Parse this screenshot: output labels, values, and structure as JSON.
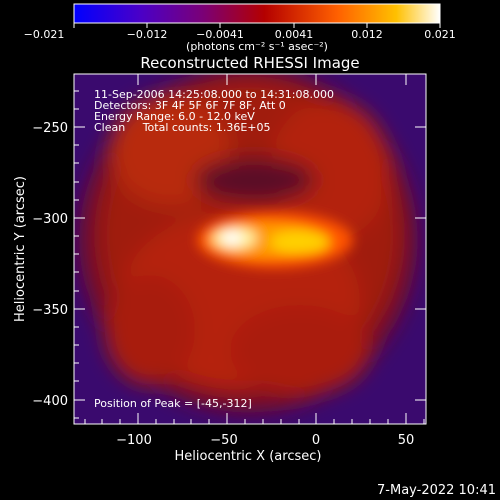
{
  "chart_data": {
    "type": "heatmap",
    "title": "Reconstructed RHESSI Image",
    "xlabel": "Heliocentric X (arcsec)",
    "ylabel": "Heliocentric Y (arcsec)",
    "xlim": [
      -135,
      62
    ],
    "ylim": [
      -413,
      -226
    ],
    "x_ticks": [
      -100,
      -50,
      0,
      50
    ],
    "x_tick_labels": [
      "−100",
      "−50",
      "0",
      "50"
    ],
    "y_ticks": [
      -250,
      -300,
      -350,
      -400
    ],
    "y_tick_labels": [
      "−250",
      "−300",
      "−350",
      "−400"
    ],
    "colorbar": {
      "min": -0.021,
      "max": 0.021,
      "tick_labels": [
        "−0.021",
        "−0.012",
        "−0.0041",
        "0.0041",
        "0.012",
        "0.021"
      ],
      "units_label": "(photons cm⁻² s⁻¹ asec⁻²)",
      "colors": [
        "#0000ff",
        "#4a00c8",
        "#7a0078",
        "#b40000",
        "#ff6000",
        "#ffc000",
        "#ffffff"
      ]
    },
    "annotations": [
      "11-Sep-2006 14:25:08.000 to 14:31:08.000",
      "Detectors: 3F 4F 5F 6F 7F 8F, Att 0",
      "Energy Range: 6.0 - 12.0 keV",
      "Clean     Total counts: 1.36E+05"
    ],
    "peak_label": "Position of Peak = [-45,-312]",
    "peak": [
      -45,
      -312
    ]
  },
  "footer": {
    "timestamp": "7-May-2022 10:41"
  }
}
